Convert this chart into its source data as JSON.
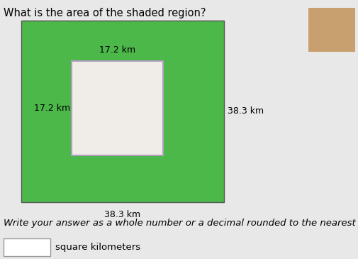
{
  "title": "What is the area of the shaded region?",
  "title_fontsize": 10.5,
  "background_color": "#e8e8e8",
  "outer_rect_color": "#4db84a",
  "outer_rect_edge": "#555555",
  "inner_rect_color": "#f0ede8",
  "inner_rect_edge": "#b0a0c0",
  "label_17_top": "17.2 km",
  "label_17_left": "17.2 km",
  "label_38_bottom": "38.3 km",
  "label_38_right": "38.3 km",
  "answer_label": "Write your answer as a whole number or a decimal rounded to the nearest hundredth.",
  "unit_label": "square kilometers",
  "label_fontsize": 9,
  "answer_fontsize": 9.5
}
